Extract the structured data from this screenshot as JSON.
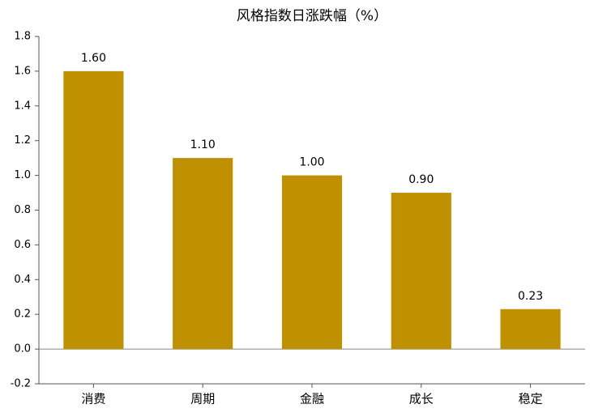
{
  "chart_data": {
    "type": "bar",
    "title": "风格指数日涨跌幅（%）",
    "categories": [
      "消费",
      "周期",
      "金融",
      "成长",
      "稳定"
    ],
    "values": [
      1.6,
      1.1,
      1.0,
      0.9,
      0.23
    ],
    "value_labels": [
      "1.60",
      "1.10",
      "1.00",
      "0.90",
      "0.23"
    ],
    "color": "#bf9000",
    "ylim": [
      -0.2,
      1.8
    ],
    "yticks": [
      -0.2,
      {
        "value": 0,
        "label": "0.0"
      },
      0.2,
      0.4,
      0.6,
      0.8,
      {
        "value": 1,
        "label": "1.0"
      },
      1.2,
      1.4,
      1.6,
      1.8
    ]
  }
}
